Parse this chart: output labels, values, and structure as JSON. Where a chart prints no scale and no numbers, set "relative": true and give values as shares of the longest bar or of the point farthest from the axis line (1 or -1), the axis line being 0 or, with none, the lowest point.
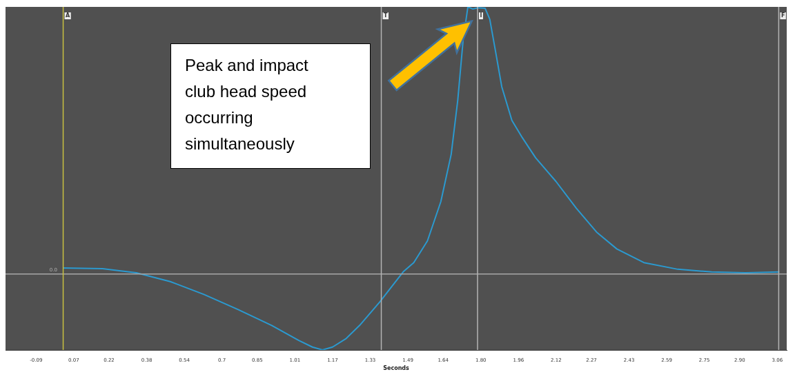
{
  "chart_data": {
    "type": "line",
    "xlabel": "Seconds",
    "relative": true,
    "grid": false,
    "legend": false,
    "marker": "none",
    "line_style": "solid",
    "x": [
      0.025,
      0.192,
      0.336,
      0.48,
      0.623,
      0.767,
      0.911,
      1.026,
      1.084,
      1.127,
      1.17,
      1.228,
      1.285,
      1.371,
      1.429,
      1.472,
      1.515,
      1.573,
      1.63,
      1.674,
      1.702,
      1.725,
      1.745,
      1.766,
      1.789,
      1.818,
      1.838,
      1.861,
      1.889,
      1.932,
      1.976,
      2.033,
      2.119,
      2.206,
      2.292,
      2.378,
      2.493,
      2.637,
      2.781,
      2.925,
      3.069
    ],
    "series": [
      {
        "color": "#2b9ad0",
        "values": [
          0.023,
          0.02,
          0.005,
          -0.028,
          -0.076,
          -0.132,
          -0.192,
          -0.248,
          -0.273,
          -0.284,
          -0.273,
          -0.241,
          -0.192,
          -0.104,
          -0.038,
          0.01,
          0.043,
          0.124,
          0.271,
          0.448,
          0.651,
          0.878,
          1,
          0.992,
          0.997,
          0.995,
          0.954,
          0.841,
          0.701,
          0.575,
          0.511,
          0.435,
          0.347,
          0.246,
          0.157,
          0.094,
          0.043,
          0.018,
          0.008,
          0.005,
          0.008
        ]
      }
    ],
    "xlim": [
      -0.22,
      3.1
    ],
    "xticks": [
      -0.09,
      0.07,
      0.22,
      0.38,
      0.54,
      0.7,
      {
        "value": 0.85,
        "label": "0.85"
      },
      1.01,
      1.17,
      1.33,
      1.49,
      1.64,
      {
        "value": 1.8,
        "label": "1.80"
      },
      1.96,
      2.12,
      2.27,
      2.43,
      2.59,
      2.75,
      {
        "value": 2.9,
        "label": "2.90"
      },
      3.06
    ],
    "ref_lines": [
      {
        "axis": "y",
        "value": 0,
        "label": "0.0",
        "color": "#a8a8a8"
      },
      {
        "axis": "x",
        "value": 0.025,
        "label": "A",
        "color": "#c8c040"
      },
      {
        "axis": "x",
        "value": 1.377,
        "label": "T",
        "color": "#b4b4b4"
      },
      {
        "axis": "x",
        "value": 1.786,
        "label": "I",
        "color": "#b4b4b4"
      },
      {
        "axis": "x",
        "value": 3.066,
        "label": "F",
        "color": "#b4b4b4"
      }
    ],
    "annotations": [
      "Peak and impact club head speed occurring simultaneously"
    ]
  }
}
